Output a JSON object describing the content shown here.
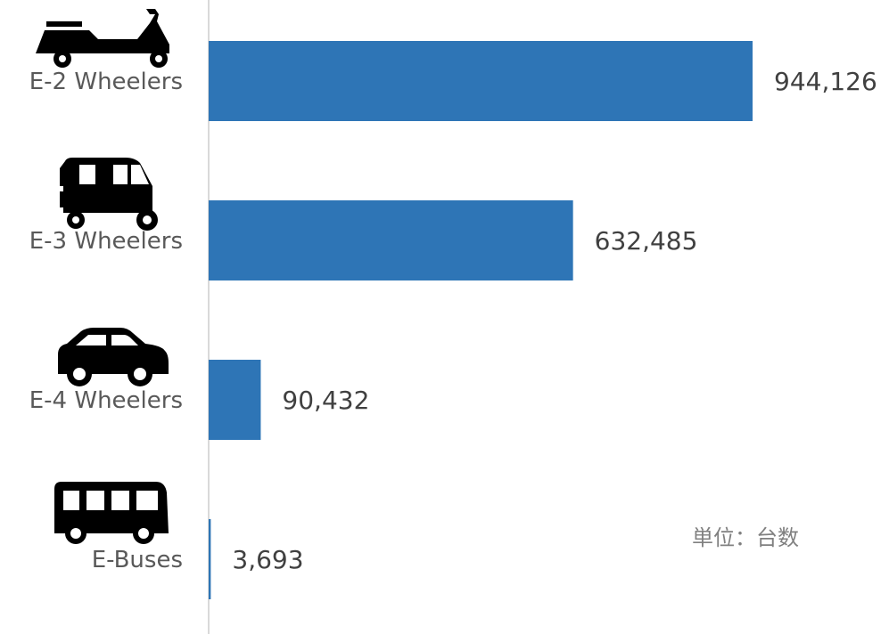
{
  "chart_data": {
    "type": "bar",
    "orientation": "horizontal",
    "categories": [
      "E-2 Wheelers",
      "E-3 Wheelers",
      "E-4 Wheelers",
      "E-Buses"
    ],
    "category_icons": [
      "scooter-icon",
      "auto-rickshaw-icon",
      "car-icon",
      "bus-icon"
    ],
    "values": [
      944126,
      632485,
      90432,
      3693
    ],
    "value_labels": [
      "944,126",
      "632,485",
      "90,432",
      "3,693"
    ],
    "bar_color": "#2e75b6",
    "axis_color": "#d9d9d9",
    "xlim": [
      0,
      944126
    ],
    "grid": false,
    "legend": "none",
    "unit_note": "単位：台数"
  }
}
